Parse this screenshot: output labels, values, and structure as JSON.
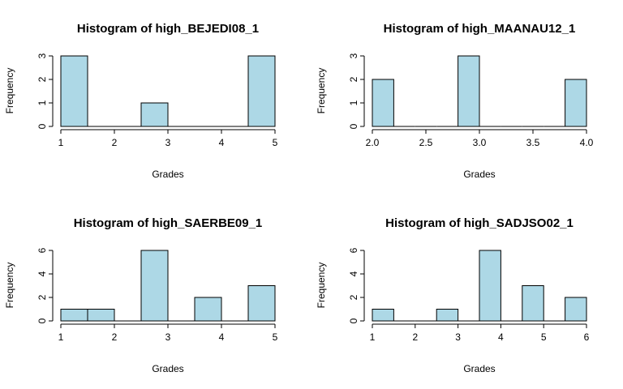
{
  "figure": {
    "background": "#ffffff"
  },
  "chart_data": [
    {
      "type": "bar",
      "title": "Histogram of high_BEJEDI08_1",
      "xlabel": "Grades",
      "ylabel": "Frequency",
      "bar_color": "#add8e6",
      "xlim": [
        1,
        5
      ],
      "ylim": [
        0,
        3
      ],
      "x_ticks": [
        "1",
        "2",
        "3",
        "4",
        "5"
      ],
      "y_ticks": [
        "0",
        "1",
        "2",
        "3"
      ],
      "bins": [
        {
          "start": 1.0,
          "end": 1.5,
          "count": 3
        },
        {
          "start": 1.5,
          "end": 2.0,
          "count": 0
        },
        {
          "start": 2.0,
          "end": 2.5,
          "count": 0
        },
        {
          "start": 2.5,
          "end": 3.0,
          "count": 1
        },
        {
          "start": 3.0,
          "end": 3.5,
          "count": 0
        },
        {
          "start": 3.5,
          "end": 4.0,
          "count": 0
        },
        {
          "start": 4.0,
          "end": 4.5,
          "count": 0
        },
        {
          "start": 4.5,
          "end": 5.0,
          "count": 3
        }
      ]
    },
    {
      "type": "bar",
      "title": "Histogram of high_MAANAU12_1",
      "xlabel": "Grades",
      "ylabel": "Frequency",
      "bar_color": "#add8e6",
      "xlim": [
        2,
        4
      ],
      "ylim": [
        0,
        3
      ],
      "x_ticks": [
        "2.0",
        "2.5",
        "3.0",
        "3.5",
        "4.0"
      ],
      "y_ticks": [
        "0",
        "1",
        "2",
        "3"
      ],
      "bins": [
        {
          "start": 2.0,
          "end": 2.2,
          "count": 2
        },
        {
          "start": 2.2,
          "end": 2.4,
          "count": 0
        },
        {
          "start": 2.4,
          "end": 2.6,
          "count": 0
        },
        {
          "start": 2.6,
          "end": 2.8,
          "count": 0
        },
        {
          "start": 2.8,
          "end": 3.0,
          "count": 3
        },
        {
          "start": 3.0,
          "end": 3.2,
          "count": 0
        },
        {
          "start": 3.2,
          "end": 3.4,
          "count": 0
        },
        {
          "start": 3.4,
          "end": 3.6,
          "count": 0
        },
        {
          "start": 3.6,
          "end": 3.8,
          "count": 0
        },
        {
          "start": 3.8,
          "end": 4.0,
          "count": 2
        }
      ]
    },
    {
      "type": "bar",
      "title": "Histogram of high_SAERBE09_1",
      "xlabel": "Grades",
      "ylabel": "Frequency",
      "bar_color": "#add8e6",
      "xlim": [
        1,
        5
      ],
      "ylim": [
        0,
        6
      ],
      "x_ticks": [
        "1",
        "2",
        "3",
        "4",
        "5"
      ],
      "y_ticks": [
        "0",
        "2",
        "4",
        "6"
      ],
      "bins": [
        {
          "start": 1.0,
          "end": 1.5,
          "count": 1
        },
        {
          "start": 1.5,
          "end": 2.0,
          "count": 1
        },
        {
          "start": 2.0,
          "end": 2.5,
          "count": 0
        },
        {
          "start": 2.5,
          "end": 3.0,
          "count": 6
        },
        {
          "start": 3.0,
          "end": 3.5,
          "count": 0
        },
        {
          "start": 3.5,
          "end": 4.0,
          "count": 2
        },
        {
          "start": 4.0,
          "end": 4.5,
          "count": 0
        },
        {
          "start": 4.5,
          "end": 5.0,
          "count": 3
        }
      ]
    },
    {
      "type": "bar",
      "title": "Histogram of high_SADJSO02_1",
      "xlabel": "Grades",
      "ylabel": "Frequency",
      "bar_color": "#add8e6",
      "xlim": [
        1,
        6
      ],
      "ylim": [
        0,
        6
      ],
      "x_ticks": [
        "1",
        "2",
        "3",
        "4",
        "5",
        "6"
      ],
      "y_ticks": [
        "0",
        "2",
        "4",
        "6"
      ],
      "bins": [
        {
          "start": 1.0,
          "end": 1.5,
          "count": 1
        },
        {
          "start": 1.5,
          "end": 2.0,
          "count": 0
        },
        {
          "start": 2.0,
          "end": 2.5,
          "count": 0
        },
        {
          "start": 2.5,
          "end": 3.0,
          "count": 1
        },
        {
          "start": 3.0,
          "end": 3.5,
          "count": 0
        },
        {
          "start": 3.5,
          "end": 4.0,
          "count": 6
        },
        {
          "start": 4.0,
          "end": 4.5,
          "count": 0
        },
        {
          "start": 4.5,
          "end": 5.0,
          "count": 3
        },
        {
          "start": 5.0,
          "end": 5.5,
          "count": 0
        },
        {
          "start": 5.5,
          "end": 6.0,
          "count": 2
        }
      ]
    }
  ]
}
